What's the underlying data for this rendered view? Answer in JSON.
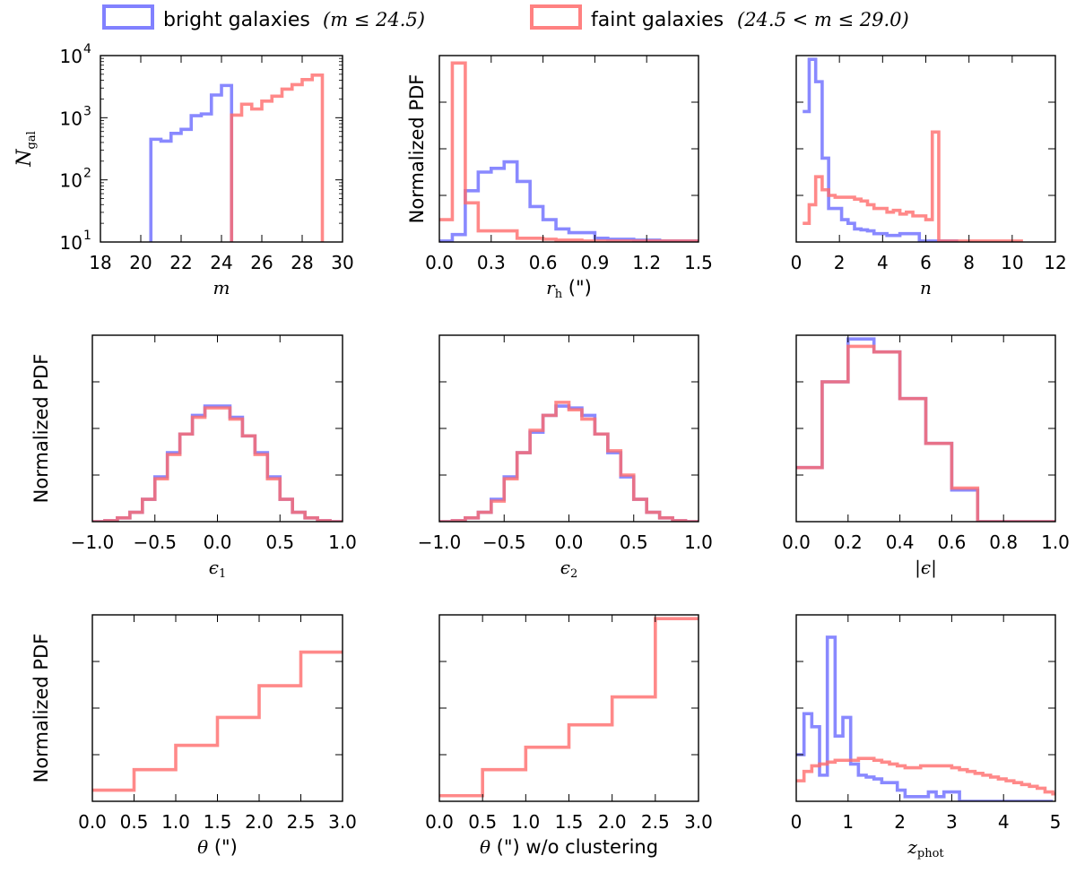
{
  "legend": {
    "bright": {
      "label": "bright galaxies",
      "math": "(m ≤ 24.5)",
      "color": "#6b6bff"
    },
    "faint": {
      "label": "faint galaxies",
      "math": "(24.5 < m ≤ 29.0)",
      "color": "#ff6b6b"
    }
  },
  "chart_data": [
    {
      "id": "m",
      "type": "histogram-step",
      "scale": "log",
      "xlim": [
        18,
        30
      ],
      "ylim": [
        10,
        10000
      ],
      "xticks": [
        "18",
        "20",
        "22",
        "24",
        "26",
        "28",
        "30"
      ],
      "ytick_values": [
        10,
        100,
        1000,
        10000
      ],
      "yticks": [
        {
          "base": "10",
          "exp": "1"
        },
        {
          "base": "10",
          "exp": "2"
        },
        {
          "base": "10",
          "exp": "3"
        },
        {
          "base": "10",
          "exp": "4"
        }
      ],
      "xlabel": "m",
      "ylabel_main": "N",
      "ylabel_sub": "gal",
      "series": [
        {
          "name": "bright",
          "edges": [
            20.5,
            21.0,
            21.5,
            22.0,
            22.5,
            23.0,
            23.5,
            24.0,
            24.5
          ],
          "values": [
            450,
            420,
            560,
            650,
            1080,
            1150,
            2320,
            3300
          ],
          "closed": true
        },
        {
          "name": "faint",
          "edges": [
            24.5,
            25.0,
            25.5,
            26.0,
            26.5,
            27.0,
            27.5,
            28.0,
            28.5,
            29.0
          ],
          "values": [
            1100,
            1650,
            1380,
            1850,
            2220,
            2880,
            3400,
            4100,
            4850
          ],
          "closed": true
        }
      ]
    },
    {
      "id": "rh",
      "type": "histogram-step",
      "xlim": [
        0,
        1.5
      ],
      "ylim": [
        0,
        1
      ],
      "xticks": [
        "0.0",
        "0.3",
        "0.6",
        "0.9",
        "1.2",
        "1.5"
      ],
      "yticks_count": 5,
      "xlabel_main": "r",
      "xlabel_sub": "h",
      "xlabel_unit": " (\")",
      "ylabel": "Normalized PDF",
      "series": [
        {
          "name": "bright",
          "edges": [
            0.0,
            0.075,
            0.15,
            0.225,
            0.3,
            0.375,
            0.45,
            0.525,
            0.6,
            0.675,
            0.75,
            0.825,
            0.9,
            0.975,
            1.05,
            1.125,
            1.2,
            1.275,
            1.35,
            1.425,
            1.5
          ],
          "values": [
            0.005,
            0.04,
            0.275,
            0.375,
            0.395,
            0.43,
            0.325,
            0.19,
            0.12,
            0.07,
            0.05,
            0.05,
            0.02,
            0.015,
            0.015,
            0.01,
            0.01,
            0.005,
            0.005,
            0.005
          ]
        },
        {
          "name": "faint",
          "edges": [
            0.0,
            0.075,
            0.15,
            0.225,
            0.3,
            0.375,
            0.45,
            0.525,
            0.6,
            0.675,
            0.75,
            0.825,
            0.9,
            0.975,
            1.05,
            1.125,
            1.2,
            1.275,
            1.35,
            1.425,
            1.5
          ],
          "values": [
            0.12,
            0.96,
            0.21,
            0.06,
            0.06,
            0.06,
            0.02,
            0.02,
            0.015,
            0.01,
            0.01,
            0.005,
            0.005,
            0.005,
            0.005,
            0.005,
            0.005,
            0.005,
            0.005,
            0.005
          ]
        }
      ]
    },
    {
      "id": "n",
      "type": "histogram-step",
      "xlim": [
        0,
        12
      ],
      "ylim": [
        0,
        1
      ],
      "xticks": [
        "0",
        "2",
        "4",
        "6",
        "8",
        "10",
        "12"
      ],
      "yticks_count": 5,
      "xlabel": "n",
      "series": [
        {
          "name": "bright",
          "edges": [
            0.3,
            0.6,
            0.9,
            1.2,
            1.5,
            1.8,
            2.1,
            2.4,
            2.7,
            3.0,
            3.3,
            3.6,
            3.9,
            4.2,
            4.5,
            4.8,
            5.1,
            5.4,
            5.7,
            6.0,
            6.3,
            6.6,
            6.9,
            7.2,
            7.5
          ],
          "values": [
            0.7,
            0.98,
            0.86,
            0.45,
            0.18,
            0.18,
            0.12,
            0.1,
            0.07,
            0.065,
            0.06,
            0.045,
            0.045,
            0.035,
            0.035,
            0.045,
            0.045,
            0.045,
            0.005,
            0.005,
            0.005,
            0.005,
            0.005,
            0.005
          ]
        },
        {
          "name": "faint",
          "edges": [
            0.3,
            0.6,
            0.9,
            1.2,
            1.5,
            1.8,
            2.1,
            2.4,
            2.7,
            3.0,
            3.3,
            3.6,
            3.9,
            4.2,
            4.5,
            4.8,
            5.1,
            5.4,
            5.7,
            6.0,
            6.3,
            6.6,
            6.9,
            7.2,
            7.5,
            7.8,
            8.1,
            8.4,
            8.7,
            9.0,
            9.3,
            9.6,
            9.9,
            10.2,
            10.5
          ],
          "values": [
            0.1,
            0.2,
            0.35,
            0.28,
            0.25,
            0.24,
            0.24,
            0.24,
            0.23,
            0.22,
            0.2,
            0.18,
            0.18,
            0.16,
            0.17,
            0.15,
            0.16,
            0.14,
            0.14,
            0.12,
            0.59,
            0.005,
            0.005,
            0.005,
            0.005,
            0.005,
            0.005,
            0.005,
            0.005,
            0.005,
            0.005,
            0.005,
            0.005,
            0.005
          ]
        }
      ]
    },
    {
      "id": "e1",
      "type": "histogram-step",
      "xlim": [
        -1,
        1
      ],
      "ylim": [
        0,
        1
      ],
      "xticks": [
        "−1.0",
        "−0.5",
        "0.0",
        "0.5",
        "1.0"
      ],
      "yticks_count": 5,
      "xlabel_main": "ϵ",
      "xlabel_sub": "1",
      "ylabel": "Normalized PDF",
      "series": [
        {
          "name": "bright",
          "edges": [
            -1.0,
            -0.9,
            -0.8,
            -0.7,
            -0.6,
            -0.5,
            -0.4,
            -0.3,
            -0.2,
            -0.1,
            0.0,
            0.1,
            0.2,
            0.3,
            0.4,
            0.5,
            0.6,
            0.7,
            0.8,
            0.9,
            1.0
          ],
          "values": [
            0.0,
            0.005,
            0.02,
            0.05,
            0.12,
            0.24,
            0.37,
            0.47,
            0.57,
            0.62,
            0.62,
            0.56,
            0.46,
            0.37,
            0.24,
            0.12,
            0.05,
            0.02,
            0.005,
            0.0
          ]
        },
        {
          "name": "faint",
          "edges": [
            -1.0,
            -0.9,
            -0.8,
            -0.7,
            -0.6,
            -0.5,
            -0.4,
            -0.3,
            -0.2,
            -0.1,
            0.0,
            0.1,
            0.2,
            0.3,
            0.4,
            0.5,
            0.6,
            0.7,
            0.8,
            0.9,
            1.0
          ],
          "values": [
            0.0,
            0.005,
            0.02,
            0.05,
            0.12,
            0.23,
            0.36,
            0.47,
            0.56,
            0.61,
            0.61,
            0.55,
            0.46,
            0.36,
            0.23,
            0.12,
            0.05,
            0.02,
            0.005,
            0.0
          ]
        }
      ]
    },
    {
      "id": "e2",
      "type": "histogram-step",
      "xlim": [
        -1,
        1
      ],
      "ylim": [
        0,
        1
      ],
      "xticks": [
        "−1.0",
        "−0.5",
        "0.0",
        "0.5",
        "1.0"
      ],
      "yticks_count": 5,
      "xlabel_main": "ϵ",
      "xlabel_sub": "2",
      "series": [
        {
          "name": "bright",
          "edges": [
            -1.0,
            -0.9,
            -0.8,
            -0.7,
            -0.6,
            -0.5,
            -0.4,
            -0.3,
            -0.2,
            -0.1,
            0.0,
            0.1,
            0.2,
            0.3,
            0.4,
            0.5,
            0.6,
            0.7,
            0.8,
            0.9,
            1.0
          ],
          "values": [
            0.0,
            0.005,
            0.02,
            0.05,
            0.12,
            0.24,
            0.37,
            0.48,
            0.57,
            0.62,
            0.61,
            0.57,
            0.47,
            0.37,
            0.24,
            0.12,
            0.05,
            0.02,
            0.005,
            0.0
          ]
        },
        {
          "name": "faint",
          "edges": [
            -1.0,
            -0.9,
            -0.8,
            -0.7,
            -0.6,
            -0.5,
            -0.4,
            -0.3,
            -0.2,
            -0.1,
            0.0,
            0.1,
            0.2,
            0.3,
            0.4,
            0.5,
            0.6,
            0.7,
            0.8,
            0.9,
            1.0
          ],
          "values": [
            0.0,
            0.005,
            0.02,
            0.05,
            0.11,
            0.23,
            0.37,
            0.49,
            0.57,
            0.64,
            0.6,
            0.55,
            0.47,
            0.38,
            0.25,
            0.12,
            0.05,
            0.02,
            0.005,
            0.0
          ]
        }
      ]
    },
    {
      "id": "eabs",
      "type": "histogram-step",
      "xlim": [
        0,
        1
      ],
      "ylim": [
        0,
        1
      ],
      "xticks": [
        "0.0",
        "0.2",
        "0.4",
        "0.6",
        "0.8",
        "1.0"
      ],
      "yticks_count": 5,
      "xlabel": "|ϵ|",
      "series": [
        {
          "name": "bright",
          "edges": [
            0.0,
            0.1,
            0.2,
            0.3,
            0.4,
            0.5,
            0.6,
            0.7,
            0.8,
            0.9,
            1.0
          ],
          "values": [
            0.29,
            0.75,
            0.98,
            0.91,
            0.66,
            0.42,
            0.17,
            0.0,
            0.0,
            0.0
          ]
        },
        {
          "name": "faint",
          "edges": [
            0.0,
            0.1,
            0.2,
            0.3,
            0.4,
            0.5,
            0.6,
            0.7,
            0.8,
            0.9,
            1.0
          ],
          "values": [
            0.29,
            0.75,
            0.94,
            0.91,
            0.66,
            0.42,
            0.18,
            0.0,
            0.0,
            0.0
          ]
        }
      ]
    },
    {
      "id": "theta",
      "type": "histogram-step",
      "xlim": [
        0,
        3
      ],
      "ylim": [
        0,
        1
      ],
      "xticks": [
        "0.0",
        "0.5",
        "1.0",
        "1.5",
        "2.0",
        "2.5",
        "3.0"
      ],
      "yticks_count": 5,
      "xlabel_main": "θ",
      "xlabel_unit": " (\")",
      "ylabel": "Normalized PDF",
      "series": [
        {
          "name": "faint",
          "edges": [
            0.0,
            0.5,
            1.0,
            1.5,
            2.0,
            2.5,
            3.0
          ],
          "values": [
            0.06,
            0.17,
            0.3,
            0.45,
            0.62,
            0.8
          ]
        }
      ]
    },
    {
      "id": "theta_noclust",
      "type": "histogram-step",
      "xlim": [
        0,
        3
      ],
      "ylim": [
        0,
        1
      ],
      "xticks": [
        "0.0",
        "0.5",
        "1.0",
        "1.5",
        "2.0",
        "2.5",
        "3.0"
      ],
      "yticks_count": 5,
      "xlabel_main": "θ",
      "xlabel_unit": " (\") w/o clustering",
      "series": [
        {
          "name": "faint",
          "edges": [
            0.0,
            0.5,
            1.0,
            1.5,
            2.0,
            2.5,
            3.0
          ],
          "values": [
            0.03,
            0.17,
            0.29,
            0.41,
            0.56,
            0.98
          ]
        }
      ]
    },
    {
      "id": "zphot",
      "type": "histogram-step",
      "xlim": [
        0,
        5
      ],
      "ylim": [
        0,
        1
      ],
      "xticks": [
        "0",
        "1",
        "2",
        "3",
        "4",
        "5"
      ],
      "yticks_count": 5,
      "xlabel_main": "z",
      "xlabel_sub": "phot",
      "series": [
        {
          "name": "bright",
          "edges": [
            0.0,
            0.15,
            0.3,
            0.45,
            0.6,
            0.75,
            0.9,
            1.05,
            1.2,
            1.35,
            1.5,
            1.65,
            1.8,
            1.95,
            2.1,
            2.25,
            2.4,
            2.55,
            2.7,
            2.85,
            3.0,
            3.15,
            3.3,
            3.45,
            3.6,
            3.75,
            3.9,
            4.05,
            4.2,
            4.35,
            4.5,
            4.65,
            4.8,
            4.95
          ],
          "values": [
            0.25,
            0.47,
            0.4,
            0.14,
            0.88,
            0.35,
            0.45,
            0.2,
            0.14,
            0.13,
            0.12,
            0.1,
            0.1,
            0.06,
            0.025,
            0.025,
            0.025,
            0.05,
            0.025,
            0.05,
            0.05,
            0.0,
            0.0,
            0.0,
            0.0,
            0.0,
            0.0,
            0.0,
            0.0,
            0.0,
            0.0,
            0.0,
            0.0
          ]
        },
        {
          "name": "faint",
          "edges": [
            0.0,
            0.15,
            0.3,
            0.45,
            0.6,
            0.75,
            0.9,
            1.05,
            1.2,
            1.35,
            1.5,
            1.65,
            1.8,
            1.95,
            2.1,
            2.25,
            2.4,
            2.55,
            2.7,
            2.85,
            3.0,
            3.15,
            3.3,
            3.45,
            3.6,
            3.75,
            3.9,
            4.05,
            4.2,
            4.35,
            4.5,
            4.65,
            4.8,
            4.95,
            5.0
          ],
          "values": [
            0.11,
            0.16,
            0.19,
            0.2,
            0.21,
            0.22,
            0.22,
            0.22,
            0.23,
            0.23,
            0.22,
            0.21,
            0.2,
            0.19,
            0.18,
            0.18,
            0.19,
            0.19,
            0.19,
            0.19,
            0.18,
            0.17,
            0.16,
            0.15,
            0.14,
            0.13,
            0.12,
            0.11,
            0.1,
            0.09,
            0.08,
            0.07,
            0.05,
            0.04
          ]
        }
      ]
    }
  ]
}
